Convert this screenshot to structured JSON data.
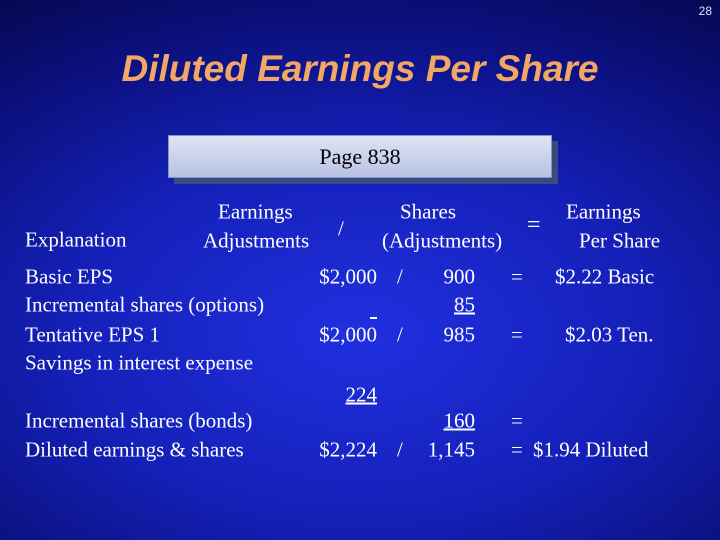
{
  "page_number": "28",
  "title": "Diluted Earnings Per Share",
  "page_ref": "Page 838",
  "header": {
    "explanation": "Explanation",
    "earnings": [
      "Earnings",
      "Adjustments"
    ],
    "divide": "/",
    "shares": [
      "Shares",
      "(Adjustments)"
    ],
    "equals": "=",
    "eps": [
      "Earnings",
      "Per Share"
    ]
  },
  "rows": [
    {
      "label": "Basic EPS",
      "earnings": "$2,000",
      "divide": "/",
      "shares": "900",
      "equals": "=",
      "eps": "$2.22 Basic"
    },
    {
      "label": "Incremental shares (options)",
      "shares": "85"
    },
    {
      "label": "Tentative EPS 1",
      "earnings": "$2,000",
      "divide": "/",
      "shares": "985",
      "equals": "=",
      "eps": "$2.03 Ten."
    },
    {
      "label": "Savings in interest expense"
    },
    {
      "earnings": "224"
    },
    {
      "label": "Incremental shares (bonds)",
      "shares": "160",
      "equals": "="
    },
    {
      "label": "Diluted earnings & shares",
      "earnings": "$2,224",
      "divide": "/",
      "shares": "1,145",
      "equals": "=",
      "eps": "$1.94 Diluted"
    }
  ]
}
